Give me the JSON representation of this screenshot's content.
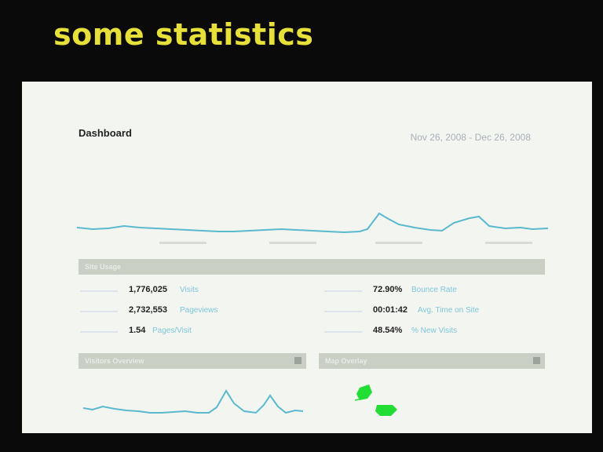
{
  "slide": {
    "title": "some statistics"
  },
  "dashboard": {
    "title": "Dashboard",
    "date_range": "Nov 26, 2008 - Dec 26, 2008",
    "colors": {
      "line": "#5ab9cf",
      "map_fill": "#22dd33",
      "section_bar": "#c9cfc4",
      "metric_label": "#7fc6d9"
    },
    "site_usage": {
      "header": "Site Usage",
      "left": [
        {
          "value": "1,776,025",
          "label": "Visits"
        },
        {
          "value": "2,732,553",
          "label": "Pageviews"
        },
        {
          "value": "1.54",
          "label": "Pages/Visit"
        }
      ],
      "right": [
        {
          "value": "72.90%",
          "label": "Bounce Rate"
        },
        {
          "value": "00:01:42",
          "label": "Avg. Time on Site"
        },
        {
          "value": "48.54%",
          "label": "% New Visits"
        }
      ]
    },
    "panels": {
      "visitors_overview": {
        "header": "Visitors Overview"
      },
      "map_overlay": {
        "header": "Map Overlay"
      }
    }
  }
}
